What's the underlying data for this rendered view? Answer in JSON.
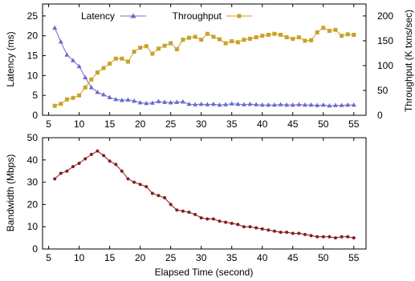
{
  "chart_data": [
    {
      "type": "line",
      "x_axis": {
        "ticks": [
          5,
          10,
          15,
          20,
          25,
          30,
          35,
          40,
          45,
          50,
          55
        ],
        "range": [
          4,
          57
        ]
      },
      "y_axis_left": {
        "label": "Latency (ms)",
        "ticks": [
          0,
          5,
          10,
          15,
          20,
          25
        ],
        "range": [
          0,
          28
        ]
      },
      "y_axis_right": {
        "label": "Throughput (K txns/sec)",
        "ticks": [
          0,
          50,
          100,
          150,
          200
        ],
        "range": [
          0,
          224
        ]
      },
      "legend": "top-left",
      "grid": false,
      "series": [
        {
          "name": "Latency",
          "axis": "left",
          "color": "#6a6acd",
          "marker": "triangle",
          "x": [
            6,
            7,
            8,
            9,
            10,
            11,
            12,
            13,
            14,
            15,
            16,
            17,
            18,
            19,
            20,
            21,
            22,
            23,
            24,
            25,
            26,
            27,
            28,
            29,
            30,
            31,
            32,
            33,
            34,
            35,
            36,
            37,
            38,
            39,
            40,
            41,
            42,
            43,
            44,
            45,
            46,
            47,
            48,
            49,
            50,
            51,
            52,
            53,
            54,
            55
          ],
          "y": [
            22,
            18.5,
            15.2,
            13.8,
            12.3,
            9.5,
            7,
            5.8,
            5.2,
            4.5,
            4,
            3.8,
            3.9,
            3.6,
            3.2,
            3.0,
            3.1,
            3.5,
            3.3,
            3.2,
            3.3,
            3.4,
            2.8,
            2.7,
            2.8,
            2.7,
            2.8,
            2.6,
            2.7,
            2.9,
            2.8,
            2.7,
            2.8,
            2.7,
            2.6,
            2.6,
            2.6,
            2.7,
            2.6,
            2.6,
            2.7,
            2.6,
            2.6,
            2.5,
            2.6,
            2.4,
            2.5,
            2.5,
            2.6,
            2.6
          ]
        },
        {
          "name": "Throughput",
          "axis": "right",
          "color": "#c9a227",
          "marker": "square",
          "x": [
            6,
            7,
            8,
            9,
            10,
            11,
            12,
            13,
            14,
            15,
            16,
            17,
            18,
            19,
            20,
            21,
            22,
            23,
            24,
            25,
            26,
            27,
            28,
            29,
            30,
            31,
            32,
            33,
            34,
            35,
            36,
            37,
            38,
            39,
            40,
            41,
            42,
            43,
            44,
            45,
            46,
            47,
            48,
            49,
            50,
            51,
            52,
            53,
            54,
            55
          ],
          "y": [
            19,
            23,
            32,
            35,
            40,
            56,
            72,
            86,
            95,
            104,
            114,
            114,
            108,
            128,
            136,
            139,
            124,
            134,
            140,
            145,
            133,
            152,
            156,
            158,
            152,
            164,
            158,
            153,
            145,
            149,
            147,
            152,
            154,
            157,
            160,
            162,
            164,
            162,
            157,
            154,
            157,
            150,
            151,
            167,
            176,
            170,
            172,
            160,
            163,
            162
          ]
        }
      ]
    },
    {
      "type": "line",
      "xlabel": "Elapsed Time (second)",
      "ylabel": "Bandwidth (Mbps)",
      "x_axis": {
        "ticks": [
          5,
          10,
          15,
          20,
          25,
          30,
          35,
          40,
          45,
          50,
          55
        ],
        "range": [
          4,
          57
        ]
      },
      "y_axis": {
        "ticks": [
          0,
          10,
          20,
          30,
          40,
          50
        ],
        "range": [
          0,
          50
        ]
      },
      "grid": false,
      "series": [
        {
          "color": "#8b1a1a",
          "marker": "circle",
          "x": [
            6,
            7,
            8,
            9,
            10,
            11,
            12,
            13,
            14,
            15,
            16,
            17,
            18,
            19,
            20,
            21,
            22,
            23,
            24,
            25,
            26,
            27,
            28,
            29,
            30,
            31,
            32,
            33,
            34,
            35,
            36,
            37,
            38,
            39,
            40,
            41,
            42,
            43,
            44,
            45,
            46,
            47,
            48,
            49,
            50,
            51,
            52,
            53,
            54,
            55
          ],
          "y": [
            31.5,
            34,
            35,
            37,
            38.5,
            40.5,
            42.5,
            44,
            42,
            39.5,
            38,
            35,
            31.5,
            30,
            29,
            28,
            25,
            24,
            23,
            20,
            17.5,
            17,
            16.5,
            15.5,
            14,
            13.5,
            13.5,
            12.5,
            12,
            11.5,
            11,
            10,
            10,
            9.5,
            9,
            8.5,
            8,
            7.5,
            7.5,
            7,
            7,
            6.5,
            6,
            5.5,
            5.5,
            5.5,
            5,
            5.5,
            5.5,
            5
          ]
        }
      ]
    }
  ]
}
